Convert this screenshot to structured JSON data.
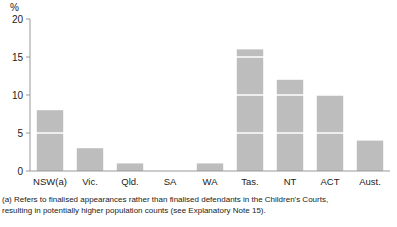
{
  "chart_data": {
    "type": "bar",
    "y_label": "%",
    "categories": [
      "NSW(a)",
      "Vic.",
      "Qld.",
      "SA",
      "WA",
      "Tas.",
      "NT",
      "ACT",
      "Aust."
    ],
    "values": [
      8,
      3,
      1,
      0,
      1,
      16,
      12,
      10,
      4
    ],
    "color": "#bdbdbd",
    "ylim": [
      0,
      20
    ],
    "yticks": [
      0,
      5,
      10,
      15,
      20
    ],
    "grid": true,
    "annotations": [
      "(a) Refers to finalised appearances rather than finalised defendants in the Children's Courts,",
      "resulting in potentially higher population counts (see Explanatory Note 15)."
    ]
  }
}
